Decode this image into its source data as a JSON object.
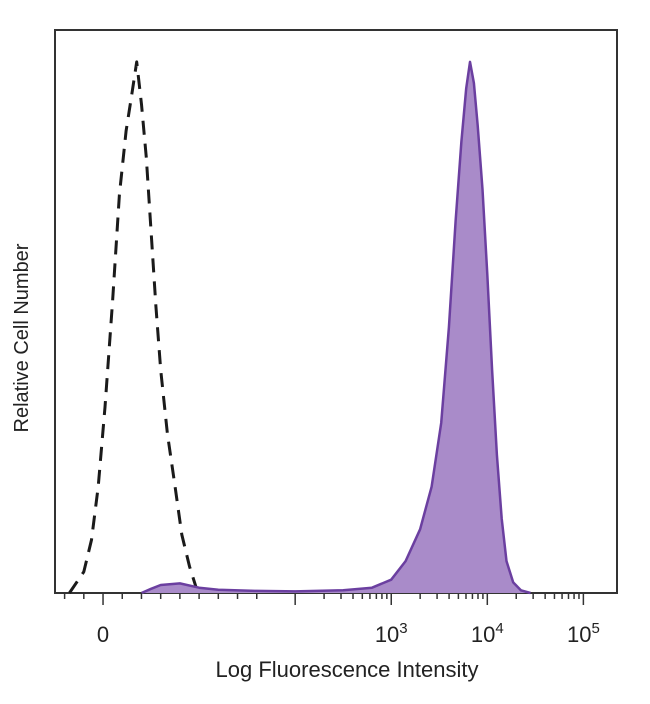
{
  "chart_data": {
    "type": "area",
    "xlabel": "Log Fluorescence Intensity",
    "ylabel": "Relative Cell Number",
    "x_scale": "biexponential",
    "xlim": [
      -0.5,
      5.35
    ],
    "ylim": [
      0,
      1.06
    ],
    "grid": false,
    "x_ticks": [
      {
        "value": 0,
        "base": "0",
        "exp": ""
      },
      {
        "value": 3,
        "base": "10",
        "exp": "3"
      },
      {
        "value": 4,
        "base": "10",
        "exp": "4"
      },
      {
        "value": 5,
        "base": "10",
        "exp": "5"
      }
    ],
    "series": [
      {
        "style": "dashed",
        "color": "#1a1a1a",
        "points": [
          [
            -0.35,
            0.0
          ],
          [
            -0.2,
            0.04
          ],
          [
            -0.12,
            0.1
          ],
          [
            -0.05,
            0.2
          ],
          [
            0.02,
            0.35
          ],
          [
            0.1,
            0.55
          ],
          [
            0.17,
            0.75
          ],
          [
            0.24,
            0.87
          ],
          [
            0.3,
            0.94
          ],
          [
            0.35,
            1.0
          ],
          [
            0.4,
            0.92
          ],
          [
            0.45,
            0.82
          ],
          [
            0.5,
            0.68
          ],
          [
            0.55,
            0.54
          ],
          [
            0.6,
            0.42
          ],
          [
            0.67,
            0.3
          ],
          [
            0.75,
            0.2
          ],
          [
            0.82,
            0.11
          ],
          [
            0.9,
            0.05
          ],
          [
            0.97,
            0.01
          ],
          [
            1.0,
            0.0
          ]
        ]
      },
      {
        "style": "filled",
        "color": "#6b3fa0",
        "fill": "#a98bc9",
        "points": [
          [
            0.4,
            0.0
          ],
          [
            0.5,
            0.008
          ],
          [
            0.6,
            0.015
          ],
          [
            0.8,
            0.018
          ],
          [
            1.0,
            0.01
          ],
          [
            1.2,
            0.006
          ],
          [
            1.6,
            0.004
          ],
          [
            2.0,
            0.003
          ],
          [
            2.5,
            0.005
          ],
          [
            2.8,
            0.01
          ],
          [
            3.0,
            0.025
          ],
          [
            3.15,
            0.06
          ],
          [
            3.3,
            0.12
          ],
          [
            3.42,
            0.2
          ],
          [
            3.52,
            0.32
          ],
          [
            3.6,
            0.5
          ],
          [
            3.67,
            0.7
          ],
          [
            3.73,
            0.85
          ],
          [
            3.78,
            0.95
          ],
          [
            3.82,
            1.0
          ],
          [
            3.86,
            0.96
          ],
          [
            3.9,
            0.88
          ],
          [
            3.95,
            0.76
          ],
          [
            4.0,
            0.6
          ],
          [
            4.05,
            0.42
          ],
          [
            4.1,
            0.26
          ],
          [
            4.15,
            0.14
          ],
          [
            4.2,
            0.06
          ],
          [
            4.27,
            0.02
          ],
          [
            4.35,
            0.005
          ],
          [
            4.45,
            0.0
          ]
        ]
      }
    ]
  }
}
